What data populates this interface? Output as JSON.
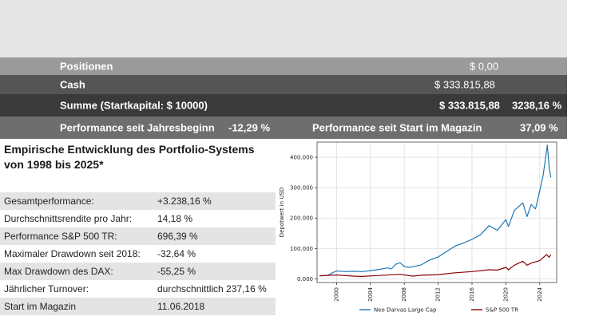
{
  "summary_rows": {
    "positions": {
      "label": "Positionen",
      "value": "$ 0,00"
    },
    "cash": {
      "label": "Cash",
      "value": "$ 333.815,88"
    },
    "total": {
      "label": "Summe (Startkapital: $ 10000)",
      "value": "$ 333.815,88",
      "percent": "3238,16 %"
    },
    "performance": {
      "ytd_label": "Performance seit Jahresbeginn",
      "ytd_value": "-12,29 %",
      "since_start_label": "Performance seit Start im Magazin",
      "since_start_value": "37,09 %"
    }
  },
  "empirical": {
    "heading": "Empirische Entwicklung des Portfolio-Systems von 1998 bis 2025*",
    "stats": [
      {
        "label": "Gesamtperformance:",
        "value": "+3.238,16 %"
      },
      {
        "label": "Durchschnittsrendite pro Jahr:",
        "value": "14,18 %"
      },
      {
        "label": "Performance S&P 500 TR:",
        "value": "696,39 %"
      },
      {
        "label": "Maximaler Drawdown seit 2018:",
        "value": "-32,64 %"
      },
      {
        "label": "Max Drawdown des DAX:",
        "value": "-55,25 %"
      },
      {
        "label": "Jährlicher Turnover:",
        "value": "durchschnittlich 237,16 %"
      },
      {
        "label": "Start im Magazin",
        "value": "11.06.2018"
      }
    ]
  },
  "chart_data": {
    "type": "line",
    "title": "",
    "xlabel": "",
    "ylabel": "Depotwert in USD",
    "xlim": [
      1997.7,
      2026.0
    ],
    "ylim": [
      -12000,
      450000
    ],
    "x_ticks": [
      2000,
      2004,
      2008,
      2012,
      2016,
      2020,
      2024
    ],
    "y_ticks": [
      0,
      100000,
      200000,
      300000,
      400000
    ],
    "y_tick_labels": [
      "0.000",
      "100.000",
      "200.000",
      "300.000",
      "400.000"
    ],
    "grid": true,
    "legend_position": "bottom",
    "series": [
      {
        "name": "Neo Darvas Large Cap",
        "color": "#1f77b4",
        "x": [
          1998.0,
          1999.0,
          1999.5,
          2000.0,
          2001.0,
          2002.0,
          2003.0,
          2004.0,
          2005.0,
          2006.0,
          2006.5,
          2007.0,
          2007.5,
          2008.0,
          2008.5,
          2009.0,
          2010.0,
          2011.0,
          2012.0,
          2013.0,
          2014.0,
          2015.0,
          2016.0,
          2017.0,
          2018.0,
          2019.0,
          2020.0,
          2020.3,
          2021.0,
          2022.0,
          2022.5,
          2023.0,
          2023.5,
          2024.0,
          2024.4,
          2024.7,
          2024.9,
          2025.1,
          2025.3
        ],
        "y": [
          10000,
          12000,
          20000,
          26000,
          24000,
          25000,
          24000,
          27000,
          31000,
          36000,
          33000,
          48000,
          53000,
          41000,
          38000,
          40000,
          46000,
          62000,
          72000,
          90000,
          108000,
          118000,
          130000,
          145000,
          175000,
          160000,
          195000,
          172000,
          225000,
          250000,
          205000,
          245000,
          230000,
          290000,
          340000,
          400000,
          440000,
          370000,
          333816
        ]
      },
      {
        "name": "S&P 500 TR",
        "color": "#8b0000",
        "x": [
          1998.0,
          2000.0,
          2002.0,
          2003.0,
          2005.0,
          2007.5,
          2009.0,
          2010.0,
          2012.0,
          2014.0,
          2016.0,
          2018.0,
          2019.0,
          2020.0,
          2020.3,
          2021.0,
          2022.0,
          2022.5,
          2023.0,
          2024.0,
          2024.8,
          2025.1,
          2025.3
        ],
        "y": [
          10000,
          13000,
          9000,
          8000,
          11000,
          15000,
          9000,
          12000,
          14000,
          20000,
          24000,
          30000,
          29000,
          38000,
          30000,
          45000,
          58000,
          45000,
          52000,
          60000,
          80000,
          71000,
          79600
        ]
      }
    ]
  }
}
